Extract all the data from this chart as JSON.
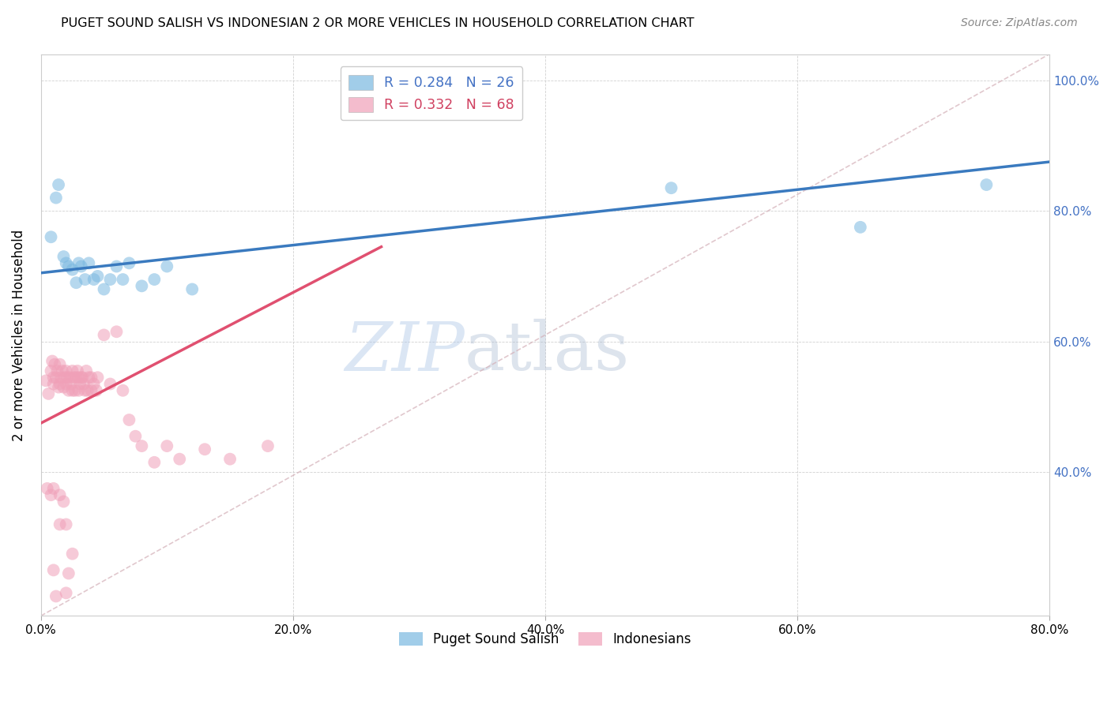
{
  "title": "PUGET SOUND SALISH VS INDONESIAN 2 OR MORE VEHICLES IN HOUSEHOLD CORRELATION CHART",
  "source": "Source: ZipAtlas.com",
  "ylabel": "2 or more Vehicles in Household",
  "xlim": [
    0.0,
    0.8
  ],
  "ylim": [
    0.18,
    1.04
  ],
  "xtick_vals": [
    0.0,
    0.2,
    0.4,
    0.6,
    0.8
  ],
  "xtick_labels": [
    "0.0%",
    "20.0%",
    "40.0%",
    "60.0%",
    "80.0%"
  ],
  "ytick_vals": [
    0.4,
    0.6,
    0.8,
    1.0
  ],
  "ytick_labels": [
    "40.0%",
    "60.0%",
    "80.0%",
    "100.0%"
  ],
  "legend_label1": "Puget Sound Salish",
  "legend_label2": "Indonesians",
  "blue_color": "#7ab8e0",
  "pink_color": "#f0a0b8",
  "blue_line_color": "#3a7abf",
  "pink_line_color": "#e05070",
  "watermark_zip": "ZIP",
  "watermark_atlas": "atlas",
  "blue_r": "R = 0.284",
  "blue_n": "N = 26",
  "pink_r": "R = 0.332",
  "pink_n": "N = 68",
  "blue_scatter_x": [
    0.008,
    0.012,
    0.014,
    0.018,
    0.02,
    0.022,
    0.025,
    0.028,
    0.03,
    0.032,
    0.035,
    0.038,
    0.042,
    0.045,
    0.05,
    0.055,
    0.06,
    0.065,
    0.07,
    0.08,
    0.09,
    0.1,
    0.12,
    0.5,
    0.65,
    0.75
  ],
  "blue_scatter_y": [
    0.76,
    0.82,
    0.84,
    0.73,
    0.72,
    0.715,
    0.71,
    0.69,
    0.72,
    0.715,
    0.695,
    0.72,
    0.695,
    0.7,
    0.68,
    0.695,
    0.715,
    0.695,
    0.72,
    0.685,
    0.695,
    0.715,
    0.68,
    0.835,
    0.775,
    0.84
  ],
  "pink_scatter_x": [
    0.004,
    0.006,
    0.008,
    0.009,
    0.01,
    0.01,
    0.011,
    0.012,
    0.013,
    0.014,
    0.015,
    0.015,
    0.016,
    0.017,
    0.018,
    0.019,
    0.02,
    0.02,
    0.021,
    0.022,
    0.023,
    0.024,
    0.025,
    0.025,
    0.026,
    0.027,
    0.028,
    0.029,
    0.03,
    0.03,
    0.031,
    0.032,
    0.033,
    0.034,
    0.035,
    0.036,
    0.037,
    0.038,
    0.04,
    0.04,
    0.042,
    0.044,
    0.045,
    0.05,
    0.055,
    0.06,
    0.065,
    0.07,
    0.075,
    0.08,
    0.09,
    0.1,
    0.11,
    0.13,
    0.15,
    0.18,
    0.005,
    0.008,
    0.01,
    0.015,
    0.018,
    0.015,
    0.02,
    0.025,
    0.022,
    0.01,
    0.012,
    0.02
  ],
  "pink_scatter_y": [
    0.54,
    0.52,
    0.555,
    0.57,
    0.545,
    0.535,
    0.565,
    0.545,
    0.555,
    0.53,
    0.565,
    0.535,
    0.545,
    0.555,
    0.53,
    0.545,
    0.555,
    0.535,
    0.545,
    0.525,
    0.545,
    0.535,
    0.555,
    0.525,
    0.545,
    0.525,
    0.545,
    0.555,
    0.525,
    0.545,
    0.535,
    0.545,
    0.545,
    0.535,
    0.525,
    0.555,
    0.525,
    0.545,
    0.525,
    0.545,
    0.535,
    0.525,
    0.545,
    0.61,
    0.535,
    0.615,
    0.525,
    0.48,
    0.455,
    0.44,
    0.415,
    0.44,
    0.42,
    0.435,
    0.42,
    0.44,
    0.375,
    0.365,
    0.375,
    0.365,
    0.355,
    0.32,
    0.32,
    0.275,
    0.245,
    0.25,
    0.21,
    0.215
  ],
  "blue_line_x0": 0.0,
  "blue_line_y0": 0.705,
  "blue_line_x1": 0.8,
  "blue_line_y1": 0.875,
  "pink_line_x0": 0.0,
  "pink_line_y0": 0.475,
  "pink_line_x1": 0.27,
  "pink_line_y1": 0.745
}
